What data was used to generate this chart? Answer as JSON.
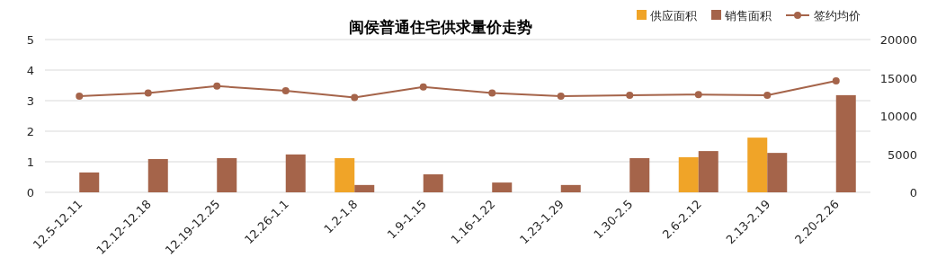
{
  "chart_data": {
    "type": "bar",
    "title": "闽侯普通住宅供求量价走势",
    "categories": [
      "12.5-12.11",
      "12.12-12.18",
      "12.19-12.25",
      "12.26-1.1",
      "1.2-1.8",
      "1.9-1.15",
      "1.16-1.22",
      "1.23-1.29",
      "1.30-2.5",
      "2.6-2.12",
      "2.13-2.19",
      "2.20-2.26"
    ],
    "series": [
      {
        "name": "供应面积",
        "color": "#f0a428",
        "values": [
          0,
          0,
          0,
          0,
          1.12,
          0,
          0,
          0,
          0,
          1.15,
          1.79,
          0
        ]
      },
      {
        "name": "销售面积",
        "color": "#a5644a",
        "values": [
          0.65,
          1.09,
          1.12,
          1.24,
          0.24,
          0.59,
          0.32,
          0.24,
          1.12,
          1.35,
          1.29,
          3.18
        ]
      },
      {
        "name": "签约均价",
        "type": "line",
        "axis": "y2",
        "marker": "circle",
        "color": "#a5644a",
        "values": [
          12600,
          13000,
          13900,
          13300,
          12400,
          13800,
          13000,
          12600,
          12700,
          12800,
          12700,
          14600
        ]
      }
    ],
    "ylim": [
      0,
      5
    ],
    "yticks": [
      0,
      1,
      2,
      3,
      4,
      5
    ],
    "y2lim": [
      0,
      20000
    ],
    "y2ticks": [
      0,
      5000,
      10000,
      15000,
      20000
    ],
    "grid": "y",
    "legend": "top right"
  }
}
